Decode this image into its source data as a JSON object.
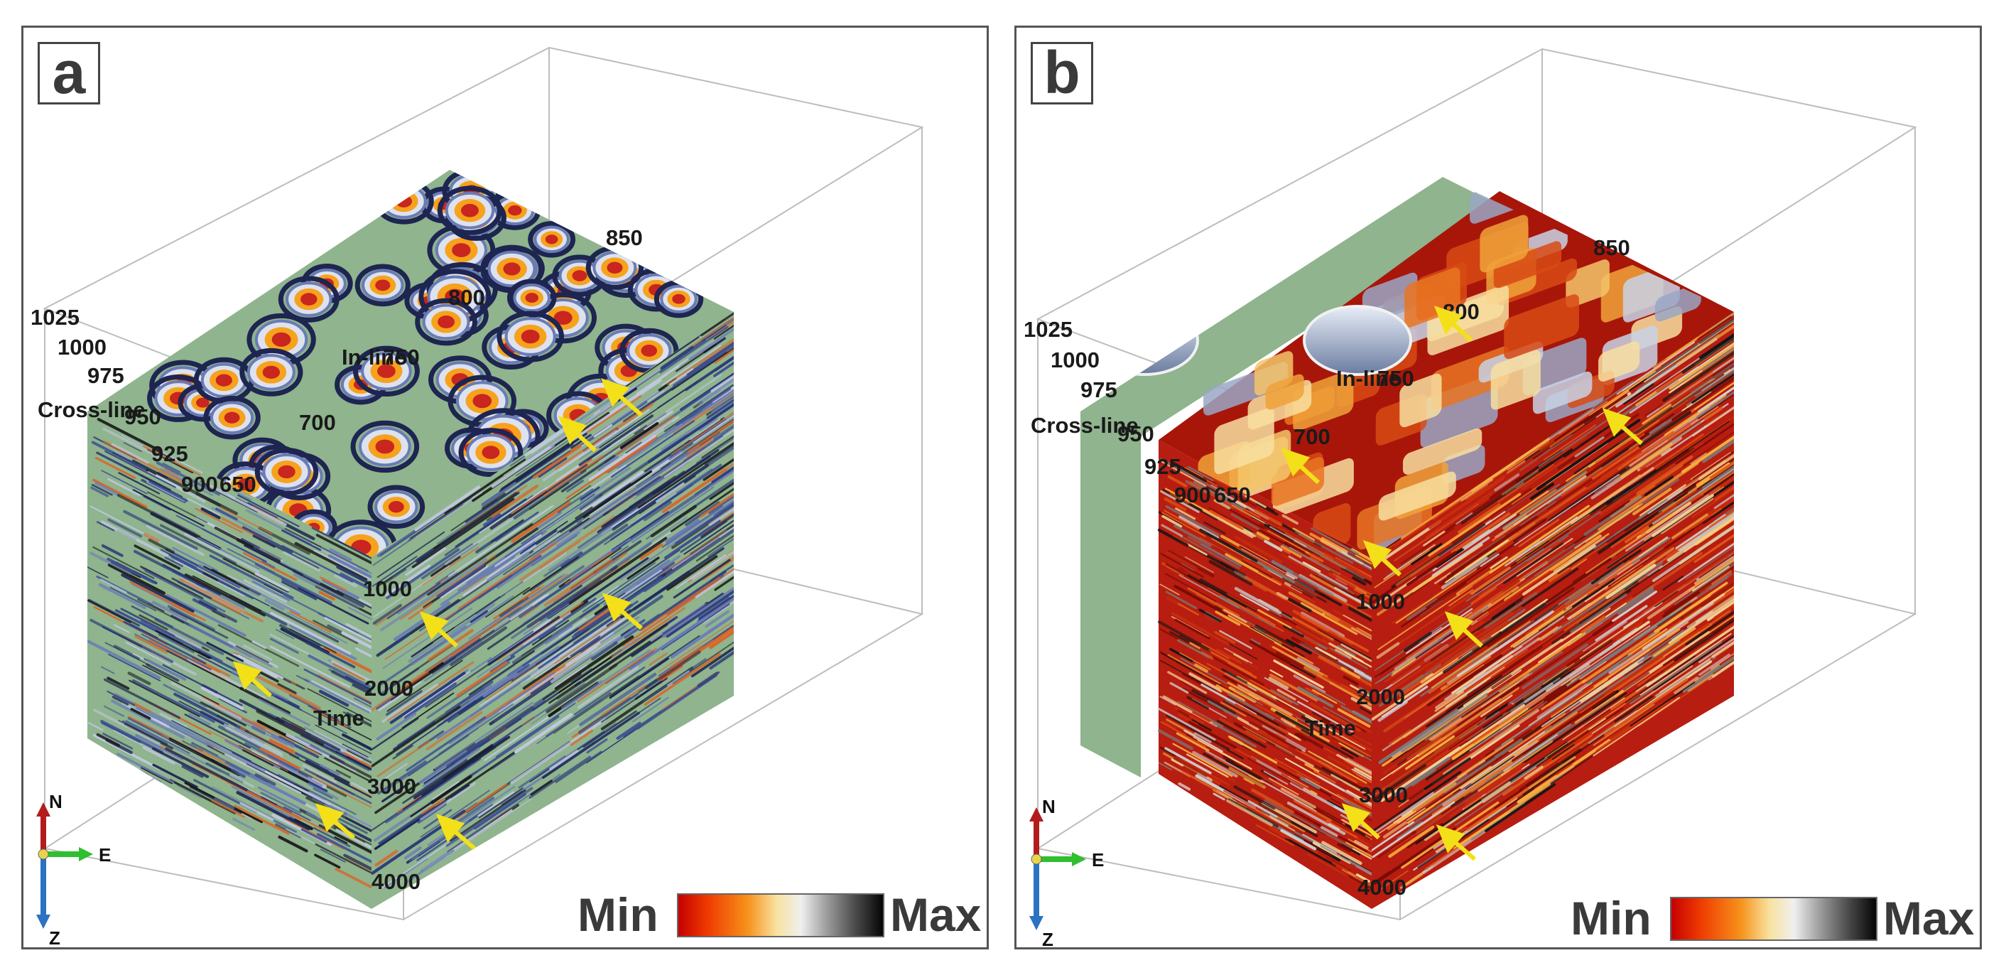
{
  "panels": [
    {
      "label": "a",
      "axis_labels": {
        "cross_line": "Cross-line",
        "in_line": "In-line",
        "time": "Time"
      },
      "cross_line_ticks": [
        "1025",
        "1000",
        "975",
        "950",
        "925",
        "900"
      ],
      "in_line_ticks": [
        "650",
        "700",
        "750",
        "800",
        "850"
      ],
      "time_ticks": [
        "1000",
        "2000",
        "3000",
        "4000"
      ],
      "colorbar": {
        "min_label": "Min",
        "max_label": "Max"
      },
      "compass": {
        "north": "N",
        "east": "E",
        "down": "Z"
      },
      "colors": {
        "background_face": "#8fb48e",
        "top_spot_core": "#c8261e",
        "streak_dark": "#1d2550"
      }
    },
    {
      "label": "b",
      "axis_labels": {
        "cross_line": "Cross-line",
        "in_line": "In-line",
        "time": "Time"
      },
      "cross_line_ticks": [
        "1025",
        "1000",
        "975",
        "950",
        "925",
        "900"
      ],
      "in_line_ticks": [
        "650",
        "700",
        "750",
        "800",
        "850"
      ],
      "time_ticks": [
        "1000",
        "2000",
        "3000",
        "4000"
      ],
      "colorbar": {
        "min_label": "Min",
        "max_label": "Max"
      },
      "compass": {
        "north": "N",
        "east": "E",
        "down": "Z"
      },
      "colors": {
        "background_face": "#8fb48e",
        "volume_base": "#b71d10",
        "top_patch_light": "#f3c46a"
      }
    }
  ]
}
